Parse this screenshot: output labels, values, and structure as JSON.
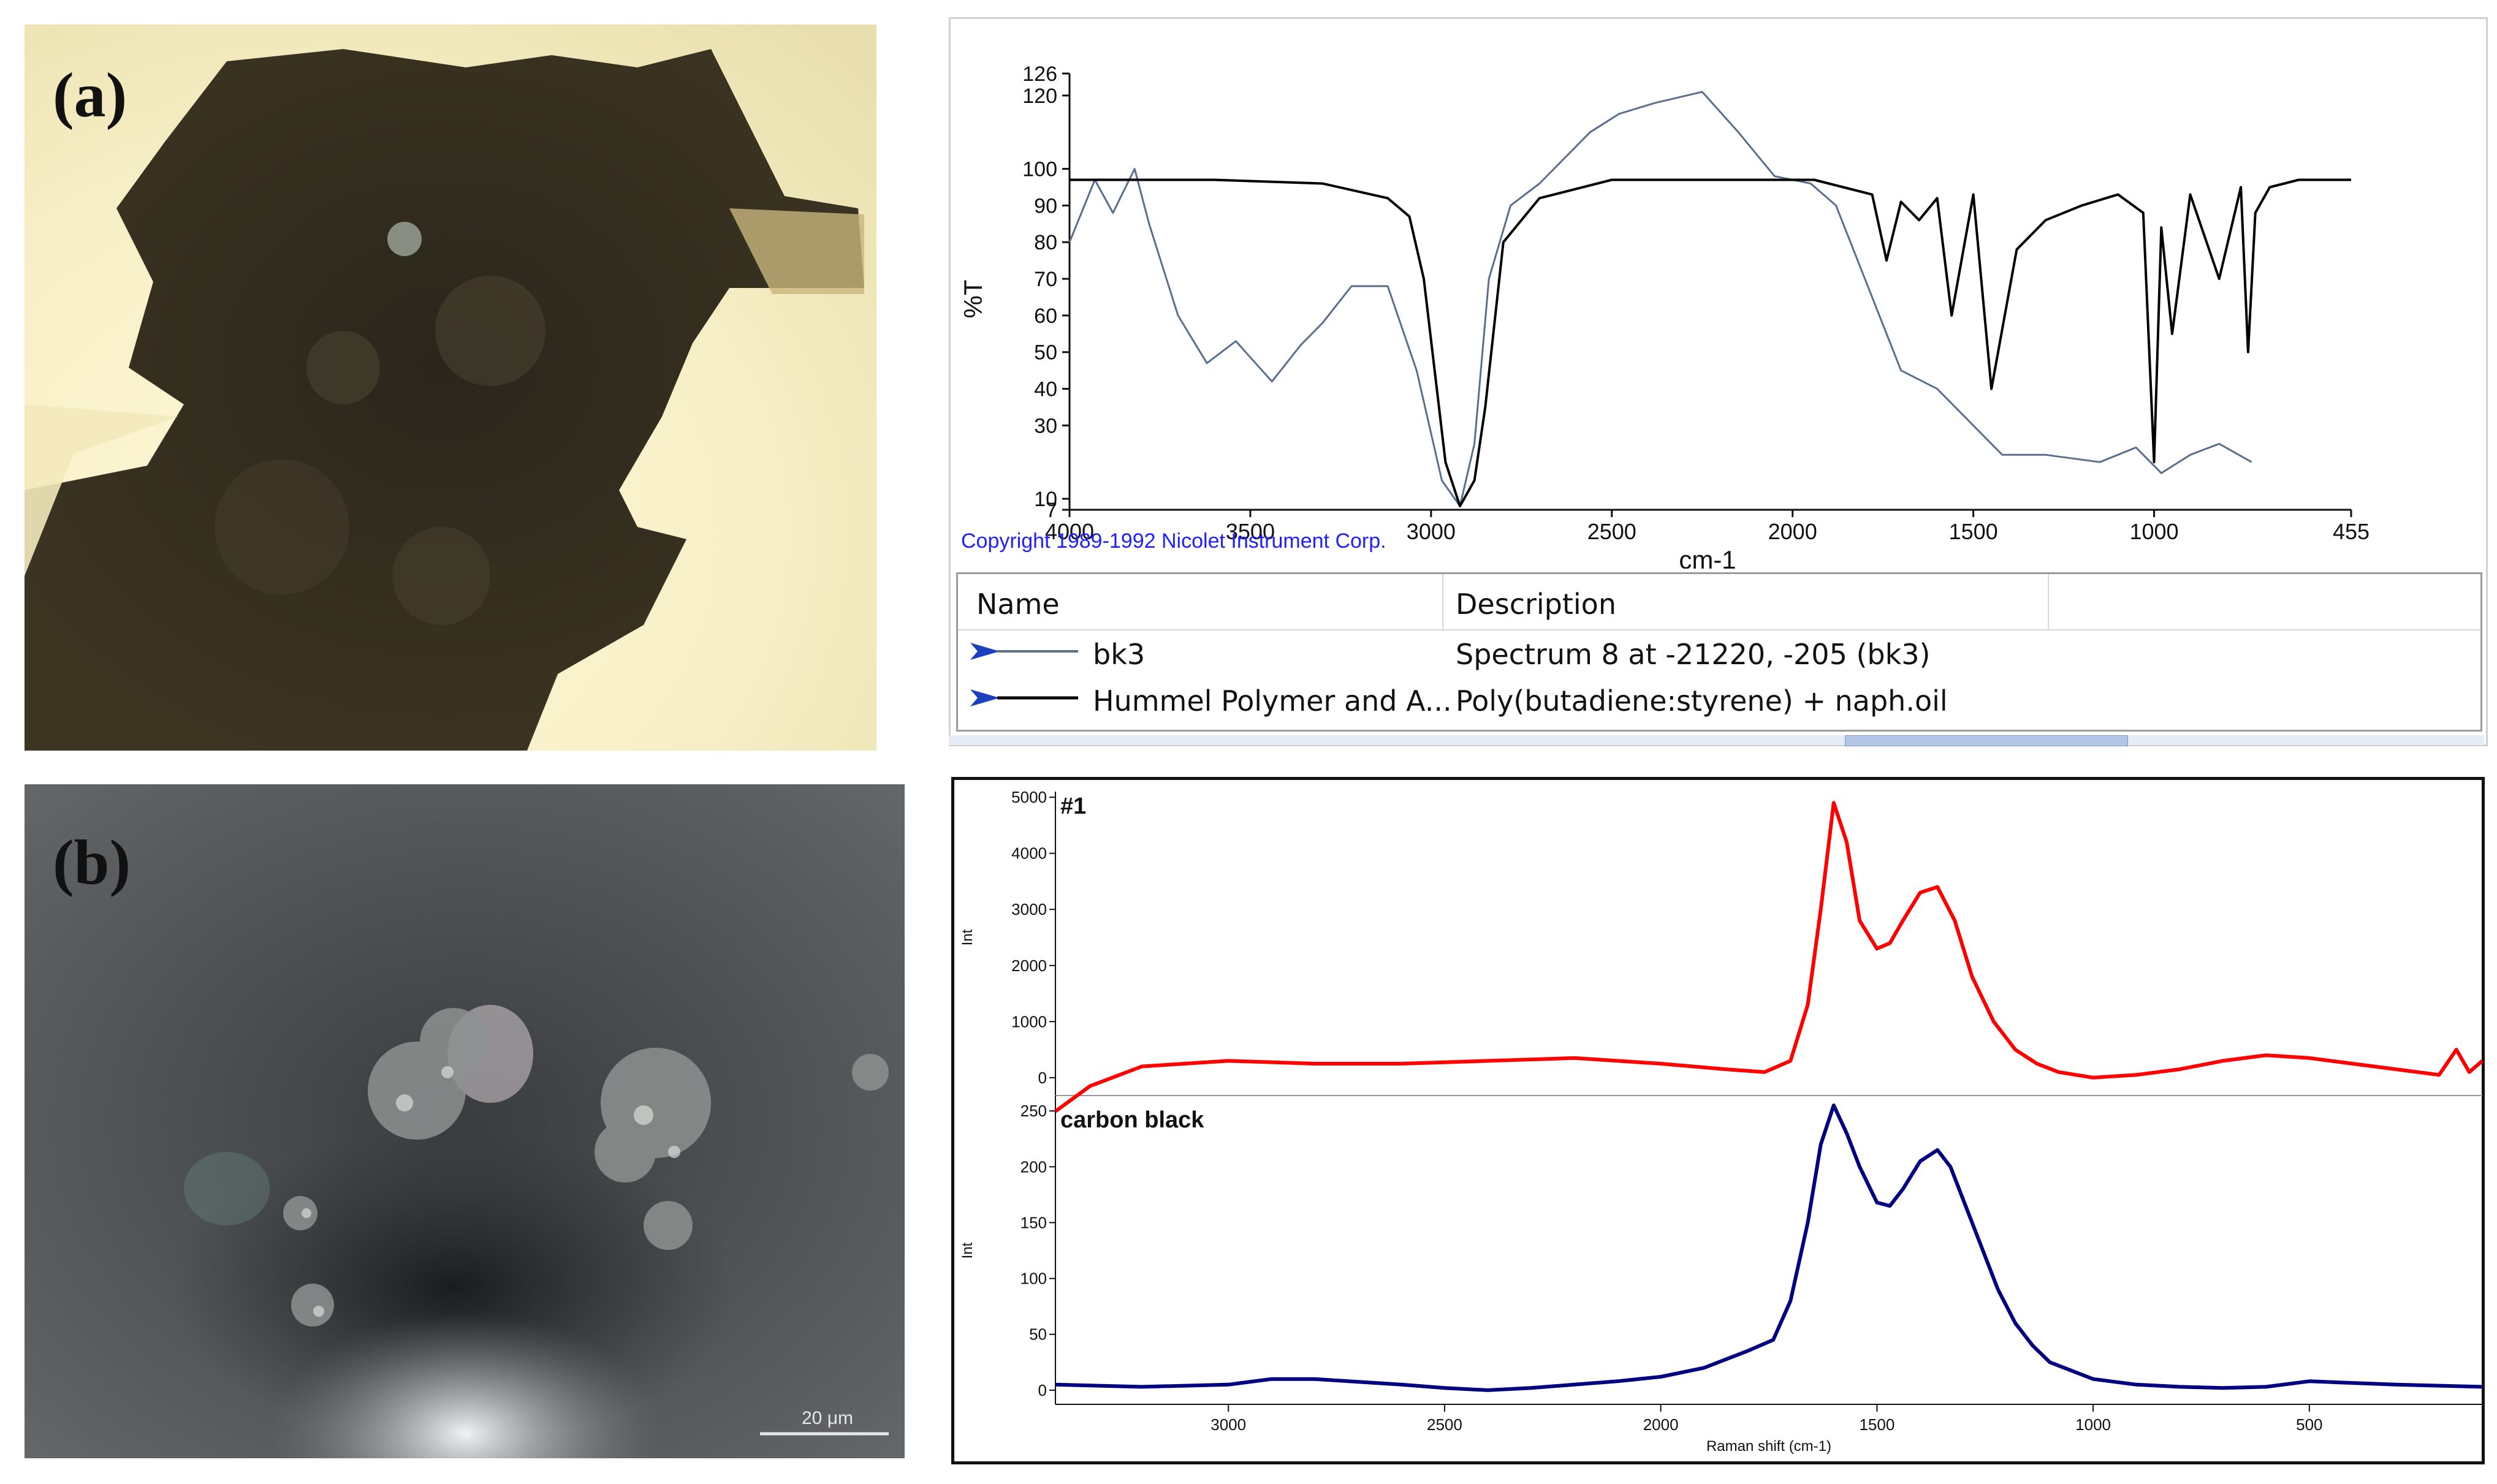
{
  "panels": {
    "a_label": "(a)",
    "b_label": "(b)",
    "scale_bar": "20 μm"
  },
  "ftir": {
    "copyright": "Copyright 1989-1992 Nicolet Instrument Corp.",
    "legend_headers": [
      "Name",
      "Description"
    ],
    "legend_rows": [
      {
        "name": "bk3",
        "description": "Spectrum 8 at -21220, -205 (bk3)",
        "color": "#5a6f8c"
      },
      {
        "name": "Hummel Polymer and A...",
        "description": "Poly(butadiene:styrene) + naph.oil",
        "color": "#000000"
      }
    ]
  },
  "raman": {
    "top_title": "#1",
    "bottom_title": "carbon black"
  },
  "chart_data": [
    {
      "type": "line",
      "xlabel": "cm-1",
      "ylabel": "%T",
      "xlim": [
        4000,
        455
      ],
      "ylim": [
        7,
        126
      ],
      "x_ticks": [
        "4000",
        "3500",
        "3000",
        "2500",
        "2000",
        "1500",
        "1000",
        "455"
      ],
      "y_ticks": [
        "7",
        "10",
        "30",
        "40",
        "50",
        "60",
        "70",
        "80",
        "90",
        "100",
        "120",
        "126"
      ],
      "series": [
        {
          "name": "bk3",
          "color": "#5a6f8c",
          "x": [
            4000,
            3930,
            3880,
            3820,
            3780,
            3700,
            3620,
            3540,
            3440,
            3360,
            3300,
            3220,
            3120,
            3040,
            2970,
            2920,
            2880,
            2840,
            2780,
            2700,
            2560,
            2480,
            2380,
            2250,
            2150,
            2050,
            1950,
            1880,
            1800,
            1700,
            1600,
            1500,
            1420,
            1300,
            1150,
            1050,
            980,
            900,
            820,
            730
          ],
          "y": [
            80,
            97,
            88,
            100,
            85,
            60,
            47,
            53,
            42,
            52,
            58,
            68,
            68,
            45,
            15,
            8,
            25,
            70,
            90,
            96,
            110,
            115,
            118,
            121,
            110,
            98,
            96,
            90,
            70,
            45,
            40,
            30,
            22,
            22,
            20,
            24,
            17,
            22,
            25,
            20
          ]
        },
        {
          "name": "Hummel Polymer and A...",
          "color": "#000000",
          "x": [
            4000,
            3600,
            3300,
            3120,
            3060,
            3020,
            2960,
            2920,
            2880,
            2850,
            2800,
            2700,
            2500,
            2100,
            1940,
            1860,
            1780,
            1740,
            1700,
            1650,
            1600,
            1560,
            1500,
            1450,
            1380,
            1300,
            1200,
            1100,
            1030,
            1000,
            980,
            950,
            900,
            820,
            760,
            740,
            720,
            680,
            600,
            455
          ],
          "y": [
            97,
            97,
            96,
            92,
            87,
            70,
            20,
            8,
            15,
            35,
            80,
            92,
            97,
            97,
            97,
            95,
            93,
            75,
            91,
            86,
            92,
            60,
            93,
            40,
            78,
            86,
            90,
            93,
            88,
            20,
            84,
            55,
            93,
            70,
            95,
            50,
            88,
            95,
            97,
            97
          ]
        }
      ]
    },
    {
      "type": "line",
      "title": "#1",
      "xlabel": "Raman shift (cm-1)",
      "ylabel": "Int",
      "xlim": [
        3400,
        100
      ],
      "ylim": [
        -100,
        5100
      ],
      "x_ticks": [
        "3000",
        "2500",
        "2000",
        "1500",
        "1000",
        "500"
      ],
      "y_ticks": [
        "0",
        "1000",
        "2000",
        "3000",
        "4000",
        "5000"
      ],
      "series": [
        {
          "color": "#ff0000",
          "x": [
            3400,
            3320,
            3200,
            3000,
            2800,
            2600,
            2400,
            2200,
            2000,
            1850,
            1760,
            1700,
            1660,
            1630,
            1600,
            1570,
            1540,
            1500,
            1470,
            1440,
            1400,
            1360,
            1320,
            1280,
            1230,
            1180,
            1130,
            1080,
            1000,
            900,
            800,
            700,
            600,
            500,
            400,
            300,
            200,
            160,
            130,
            100
          ],
          "y": [
            -600,
            -150,
            200,
            300,
            250,
            250,
            300,
            350,
            250,
            150,
            100,
            300,
            1300,
            3000,
            4900,
            4200,
            2800,
            2300,
            2400,
            2800,
            3300,
            3400,
            2800,
            1800,
            1000,
            500,
            250,
            100,
            0,
            50,
            150,
            300,
            400,
            350,
            250,
            150,
            50,
            500,
            100,
            300
          ]
        }
      ]
    },
    {
      "type": "line",
      "title": "carbon black",
      "xlabel": "Raman shift (cm-1)",
      "ylabel": "Int",
      "xlim": [
        3400,
        100
      ],
      "ylim": [
        -5,
        255
      ],
      "x_ticks": [
        "3000",
        "2500",
        "2000",
        "1500",
        "1000",
        "500"
      ],
      "y_ticks": [
        "0",
        "50",
        "100",
        "150",
        "200",
        "250"
      ],
      "series": [
        {
          "color": "#000080",
          "x": [
            3400,
            3200,
            3000,
            2900,
            2800,
            2600,
            2500,
            2400,
            2300,
            2200,
            2100,
            2000,
            1900,
            1800,
            1740,
            1700,
            1660,
            1630,
            1600,
            1570,
            1540,
            1500,
            1470,
            1440,
            1400,
            1360,
            1330,
            1300,
            1260,
            1220,
            1180,
            1140,
            1100,
            1000,
            900,
            800,
            700,
            600,
            500,
            300,
            100
          ],
          "y": [
            5,
            3,
            5,
            10,
            10,
            5,
            2,
            0,
            2,
            5,
            8,
            12,
            20,
            35,
            45,
            80,
            150,
            220,
            255,
            230,
            200,
            168,
            165,
            180,
            205,
            215,
            200,
            170,
            130,
            90,
            60,
            40,
            25,
            10,
            5,
            3,
            2,
            3,
            8,
            5,
            3
          ]
        }
      ]
    }
  ]
}
